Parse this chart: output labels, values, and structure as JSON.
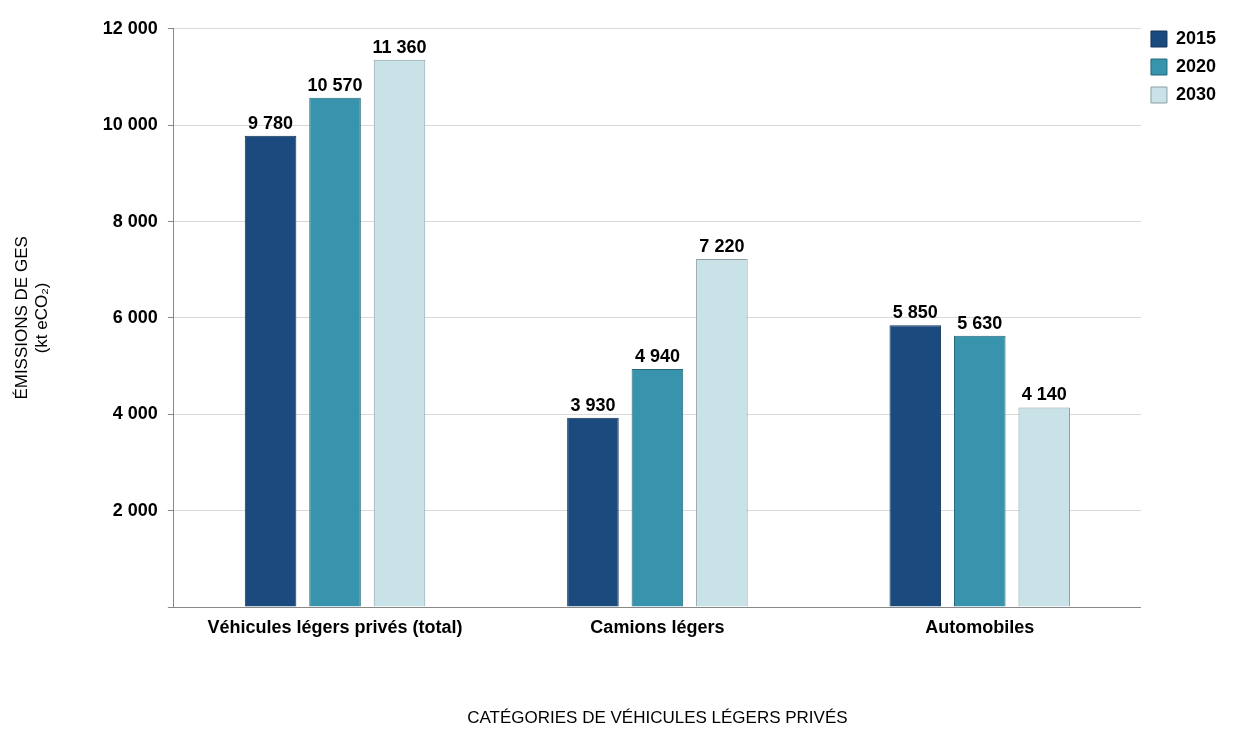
{
  "chart_data": {
    "type": "bar",
    "xlabel": "CATÉGORIES DE VÉHICULES LÉGERS PRIVÉS",
    "ylabel": "ÉMISSIONS DE GES\n(kt eCO₂)",
    "categories": [
      "Véhicules légers privés (total)",
      "Camions légers",
      "Automobiles"
    ],
    "series": [
      {
        "name": "2015",
        "color": "#1b4a7e",
        "values": [
          9780,
          3930,
          5850
        ],
        "value_labels": [
          "9 780",
          "3 930",
          "5 850"
        ]
      },
      {
        "name": "2020",
        "color": "#3794ac",
        "values": [
          10570,
          4940,
          5630
        ],
        "value_labels": [
          "10 570",
          "4 940",
          "5 630"
        ]
      },
      {
        "name": "2030",
        "color": "#c8e2e8",
        "values": [
          11360,
          7220,
          4140
        ],
        "value_labels": [
          "11 360",
          "7 220",
          "4 140"
        ]
      }
    ],
    "ylim": [
      0,
      12000
    ],
    "yticks": [
      {
        "value": 0,
        "label": null
      },
      {
        "value": 2000,
        "label": "2 000"
      },
      {
        "value": 4000,
        "label": "4 000"
      },
      {
        "value": 6000,
        "label": "6 000"
      },
      {
        "value": 8000,
        "label": "8 000"
      },
      {
        "value": 10000,
        "label": "10 000"
      },
      {
        "value": 12000,
        "label": "12 000"
      }
    ],
    "grid": "y",
    "legend": "top right"
  }
}
